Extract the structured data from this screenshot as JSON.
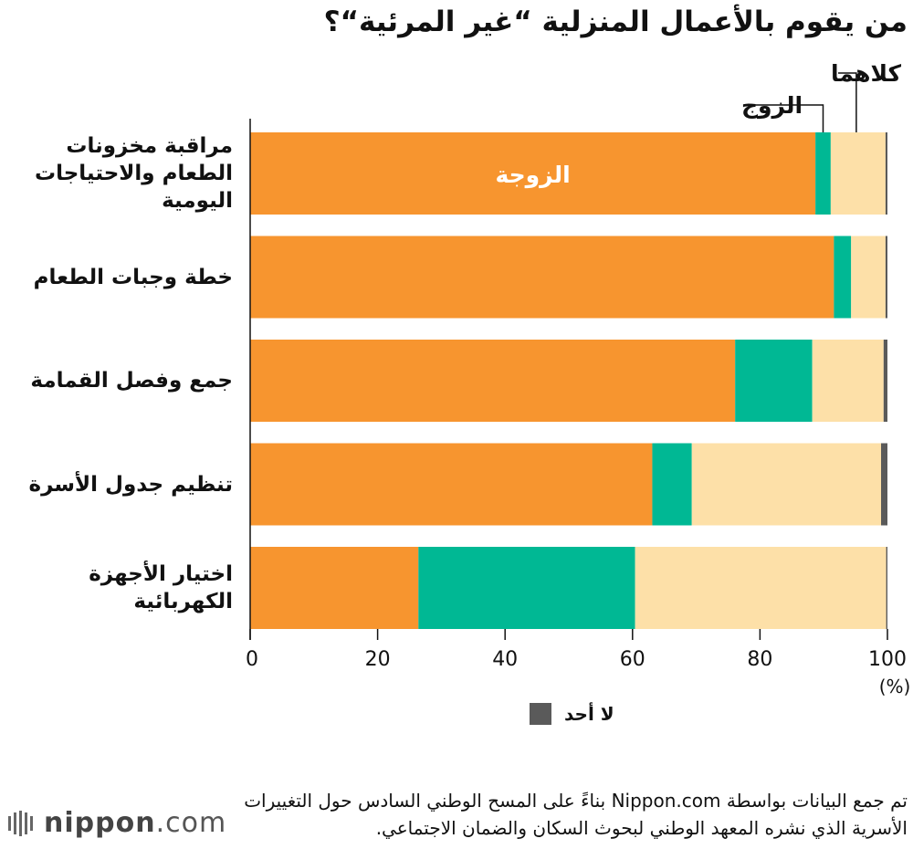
{
  "title": "من يقوم بالأعمال المنزلية “غير المرئية“؟",
  "chart_data": {
    "type": "bar",
    "orientation": "horizontal",
    "stacked": true,
    "categories": [
      "مراقبة مخزونات الطعام والاحتياجات اليومية",
      "خطة وجبات الطعام",
      "جمع وفصل القمامة",
      "تنظيم جدول الأسرة",
      "اختيار الأجهزة الكهربائية"
    ],
    "category_lines": [
      [
        "مراقبة مخزونات",
        "الطعام والاحتياجات",
        "اليومية"
      ],
      [
        "خطة وجبات الطعام"
      ],
      [
        "جمع وفصل القمامة"
      ],
      [
        "تنظيم جدول الأسرة"
      ],
      [
        "اختيار الأجهزة",
        "الكهربائية"
      ]
    ],
    "series": [
      {
        "name": "الزوجة",
        "color": "#f7952f",
        "values": [
          88.7,
          91.6,
          76.1,
          63.1,
          26.4
        ]
      },
      {
        "name": "الزوج",
        "color": "#00b894",
        "values": [
          2.4,
          2.7,
          12.1,
          6.2,
          34.0
        ]
      },
      {
        "name": "كلاهما",
        "color": "#fde0a8",
        "values": [
          8.6,
          5.4,
          11.2,
          29.7,
          39.4
        ]
      },
      {
        "name": "لا أحد",
        "color": "#5a5a5a",
        "values": [
          0.3,
          0.3,
          0.6,
          1.0,
          0.2
        ]
      }
    ],
    "x_ticks": [
      0,
      20,
      40,
      60,
      80,
      100
    ],
    "xlim": [
      0,
      100
    ],
    "xlabel": "(%)",
    "grid": false
  },
  "legend": {
    "none_label": "لا أحد"
  },
  "source": "تم جمع البيانات بواسطة Nippon.com بناءً على المسح الوطني السادس حول التغييرات الأسرية الذي نشره المعهد الوطني لبحوث السكان والضمان الاجتماعي.",
  "logo": {
    "bold": "nippon",
    "dot": ".",
    "light": "com"
  }
}
